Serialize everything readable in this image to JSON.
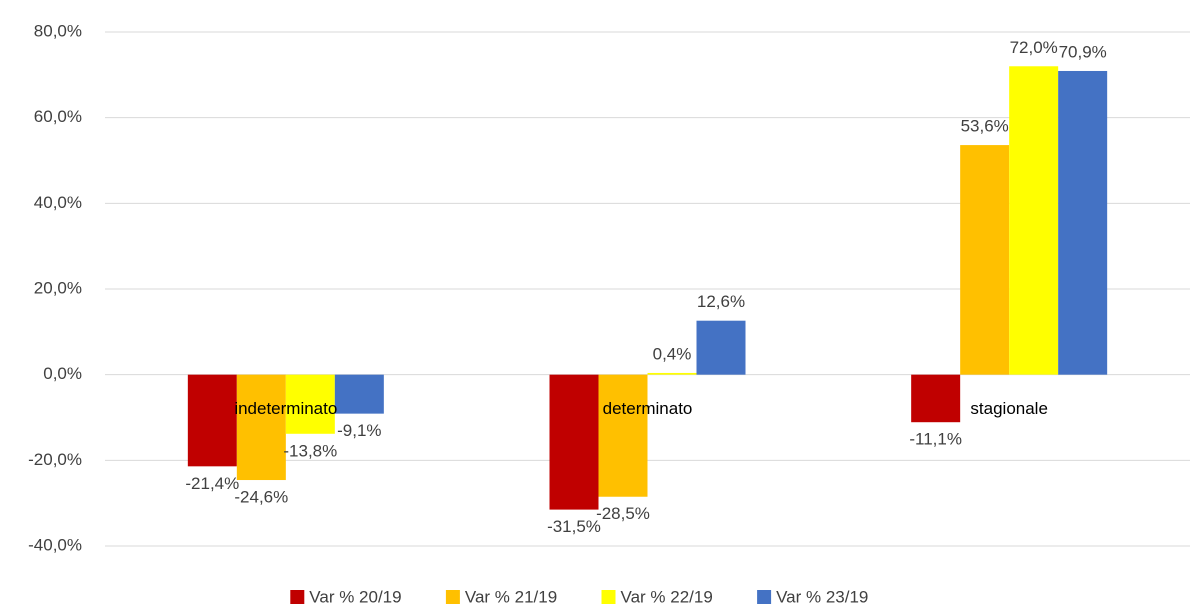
{
  "chart_data": {
    "type": "bar",
    "categories": [
      "indeterminato",
      "determinato",
      "stagionale"
    ],
    "series": [
      {
        "name": "Var % 20/19",
        "color": "#c00000",
        "values": [
          -21.4,
          -31.5,
          -11.1
        ],
        "value_labels": [
          "-21,4%",
          "-31,5%",
          "-11,1%"
        ]
      },
      {
        "name": "Var % 21/19",
        "color": "#ffc000",
        "values": [
          -24.6,
          -28.5,
          53.6
        ],
        "value_labels": [
          "-24,6%",
          "-28,5%",
          "53,6%"
        ]
      },
      {
        "name": "Var % 22/19",
        "color": "#ffff00",
        "values": [
          -13.8,
          0.4,
          72.0
        ],
        "value_labels": [
          "-13,8%",
          "0,4%",
          "72,0%"
        ]
      },
      {
        "name": "Var % 23/19",
        "color": "#4472c4",
        "values": [
          -9.1,
          12.6,
          70.9
        ],
        "value_labels": [
          "-9,1%",
          "12,6%",
          "70,9%"
        ]
      }
    ],
    "ylim": [
      -40,
      80
    ],
    "yticks": [
      {
        "value": -40,
        "label": "-40,0%"
      },
      {
        "value": -20,
        "label": "-20,0%"
      },
      {
        "value": 0,
        "label": "0,0%"
      },
      {
        "value": 20,
        "label": "20,0%"
      },
      {
        "value": 40,
        "label": "40,0%"
      },
      {
        "value": 60,
        "label": "60,0%"
      },
      {
        "value": 80,
        "label": "80,0%"
      }
    ],
    "grid": true,
    "legend": "bottom"
  }
}
